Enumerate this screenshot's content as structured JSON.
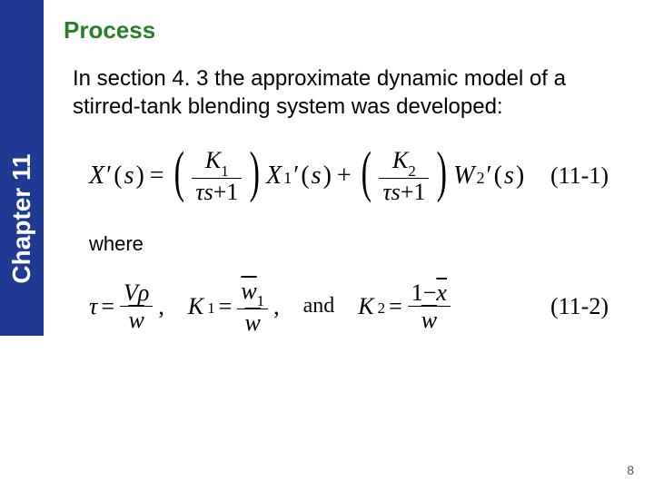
{
  "sidebar": {
    "label": "Chapter 11"
  },
  "title": "Process",
  "intro": "In section 4. 3 the approximate dynamic model of a stirred-tank blending system was developed:",
  "eq1": {
    "lhs_X": "X",
    "prime": "′",
    "s": "s",
    "eq": "=",
    "K1": "K",
    "K1_sub": "1",
    "tau": "τ",
    "plus1": "+1",
    "X1": "X",
    "X1_sub": "1",
    "plus": "+",
    "K2": "K",
    "K2_sub": "2",
    "W2": "W",
    "W2_sub": "2",
    "num": "(11-1)"
  },
  "where": "where",
  "eq2": {
    "tau": "τ",
    "eq": "=",
    "V": "V",
    "rho": "ρ",
    "wbar": "w",
    "comma": ",",
    "K1": "K",
    "K1_sub": "1",
    "w1bar": "w",
    "w1_sub": "1",
    "and": "and",
    "K2": "K",
    "K2_sub": "2",
    "one_minus": "1−",
    "xbar": "x",
    "num": "(11-2)"
  },
  "page": "8",
  "colors": {
    "sidebar_bg": "#1f3a93",
    "title_color": "#2a7d2a",
    "text_color": "#000000"
  }
}
